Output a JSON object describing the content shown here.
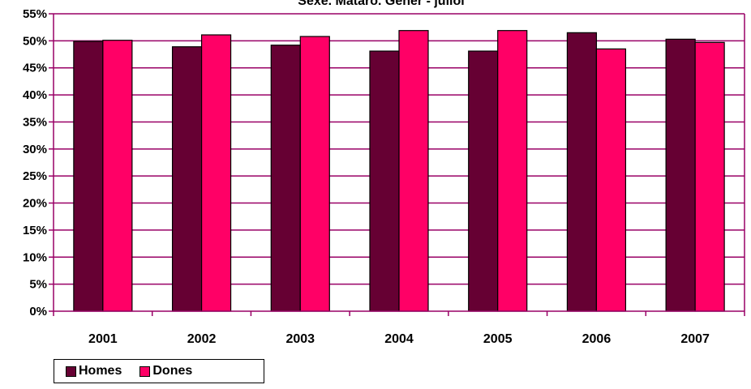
{
  "chart_data": {
    "type": "bar",
    "title": "Sexe. Mataró. Gener - juliol",
    "xlabel": "",
    "ylabel": "",
    "categories": [
      "2001",
      "2002",
      "2003",
      "2004",
      "2005",
      "2006",
      "2007"
    ],
    "series": [
      {
        "name": "Homes",
        "color": "#660033",
        "values": [
          49.9,
          48.9,
          49.2,
          48.1,
          48.1,
          51.5,
          50.3
        ]
      },
      {
        "name": "Dones",
        "color": "#ff0066",
        "values": [
          50.1,
          51.1,
          50.8,
          51.9,
          51.9,
          48.5,
          49.7
        ]
      }
    ],
    "ylim": [
      0,
      55
    ],
    "yticks": [
      "0%",
      "5%",
      "10%",
      "15%",
      "20%",
      "25%",
      "30%",
      "35%",
      "40%",
      "45%",
      "50%",
      "55%"
    ],
    "grid": true,
    "gridline_color": "#990066",
    "legend_position": "bottom-left"
  }
}
